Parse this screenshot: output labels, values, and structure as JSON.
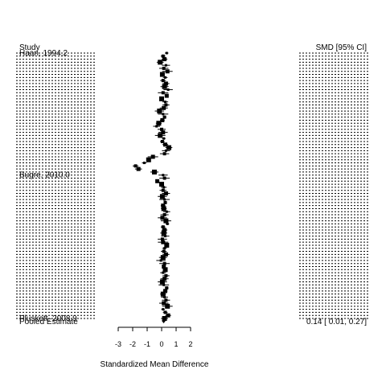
{
  "chart_data": {
    "type": "forest",
    "header_left": "Study",
    "header_right": "SMD [95% CI]",
    "pooled_label": "Pooled Estimate",
    "pooled_ci_text": "0.14 [ 0.01, 0.27]",
    "pooled_estimate": 0.14,
    "pooled_ci": [
      0.01,
      0.27
    ],
    "xlabel": "Standardized Mean Difference",
    "xticks": [
      -3,
      -2,
      -1,
      0,
      1,
      2
    ],
    "xlim": [
      -3,
      2
    ],
    "legible_study_labels": [
      "Haan, 1994.2",
      "Bugre, 2010.0",
      "Pluskett, 2008.9"
    ],
    "study_count": 88,
    "study_estimates": [
      0.35,
      0.1,
      0.2,
      -0.1,
      0.3,
      0.15,
      0.4,
      0.05,
      0.25,
      0.1,
      0.3,
      0.2,
      0.45,
      0.1,
      0.35,
      0.0,
      0.25,
      0.3,
      0.15,
      -0.15,
      0.1,
      0.2,
      0.05,
      -0.2,
      -0.35,
      0.0,
      0.1,
      -0.1,
      0.15,
      0.05,
      0.25,
      0.5,
      0.3,
      0.2,
      -0.6,
      -0.9,
      -1.2,
      -1.8,
      -1.6,
      -0.5,
      0.1,
      0.2,
      -0.3,
      0.0,
      0.15,
      0.1,
      0.3,
      0.05,
      0.2,
      0.25,
      0.1,
      0.15,
      0.35,
      0.2,
      0.05,
      0.3,
      0.4,
      0.1,
      0.2,
      0.15,
      0.25,
      0.05,
      0.1,
      0.35,
      0.2,
      0.15,
      0.3,
      0.1,
      -0.05,
      0.2,
      0.15,
      0.25,
      0.1,
      0.3,
      0.2,
      0.05,
      0.15,
      0.35,
      0.25,
      0.1,
      0.2,
      0.3,
      0.15,
      0.4,
      0.1,
      0.25,
      0.45,
      0.2
    ]
  }
}
